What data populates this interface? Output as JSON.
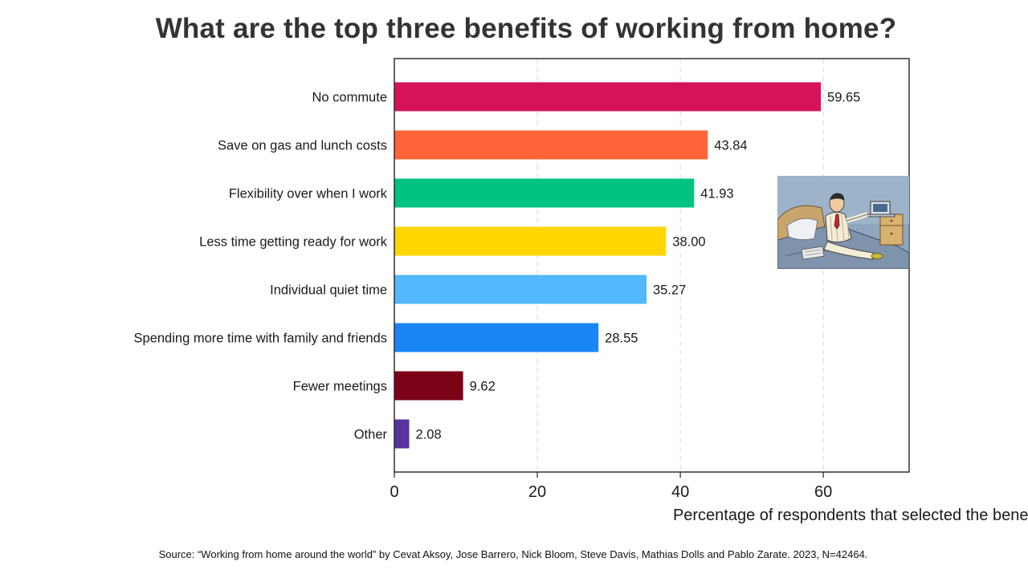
{
  "chart_data": {
    "type": "bar",
    "orientation": "horizontal",
    "title": "What are the top three benefits of working from home?",
    "xlabel": "Percentage of respondents that selected the benefit",
    "ylabel": "",
    "xlim": [
      0,
      72
    ],
    "xticks": [
      0,
      20,
      40,
      60
    ],
    "grid": "vertical dashed",
    "categories": [
      "No commute",
      "Save on gas and lunch costs",
      "Flexibility over when I work",
      "Less time getting ready for work",
      "Individual quiet time",
      "Spending more time with family and friends",
      "Fewer meetings",
      "Other"
    ],
    "values": [
      59.65,
      43.84,
      41.93,
      38.0,
      35.27,
      28.55,
      9.62,
      2.08
    ],
    "value_labels": [
      "59.65",
      "43.84",
      "41.93",
      "38.00",
      "35.27",
      "28.55",
      "9.62",
      "2.08"
    ],
    "colors": [
      "#d6125a",
      "#fe6437",
      "#00c281",
      "#ffd600",
      "#52b8fb",
      "#1a86f5",
      "#7b0117",
      "#58339b"
    ],
    "source": "Source: “Working from home around the world” by Cevat Aksoy, Jose Barrero, Nick Bloom, Steve Davis, Mathias Dolls and Pablo Zarate. 2023, N=42464."
  },
  "illustration": {
    "icon": "man-working-in-bed-illustration"
  }
}
